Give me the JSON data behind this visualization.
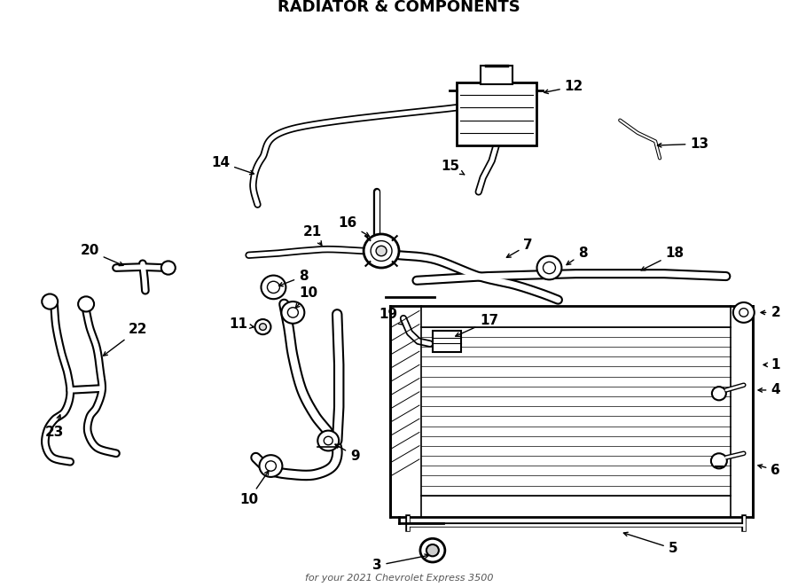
{
  "title": "RADIATOR & COMPONENTS",
  "subtitle": "for your 2021 Chevrolet Express 3500",
  "bg": "#ffffff",
  "lc": "#000000",
  "fig_w": 9.0,
  "fig_h": 6.62,
  "dpi": 100
}
